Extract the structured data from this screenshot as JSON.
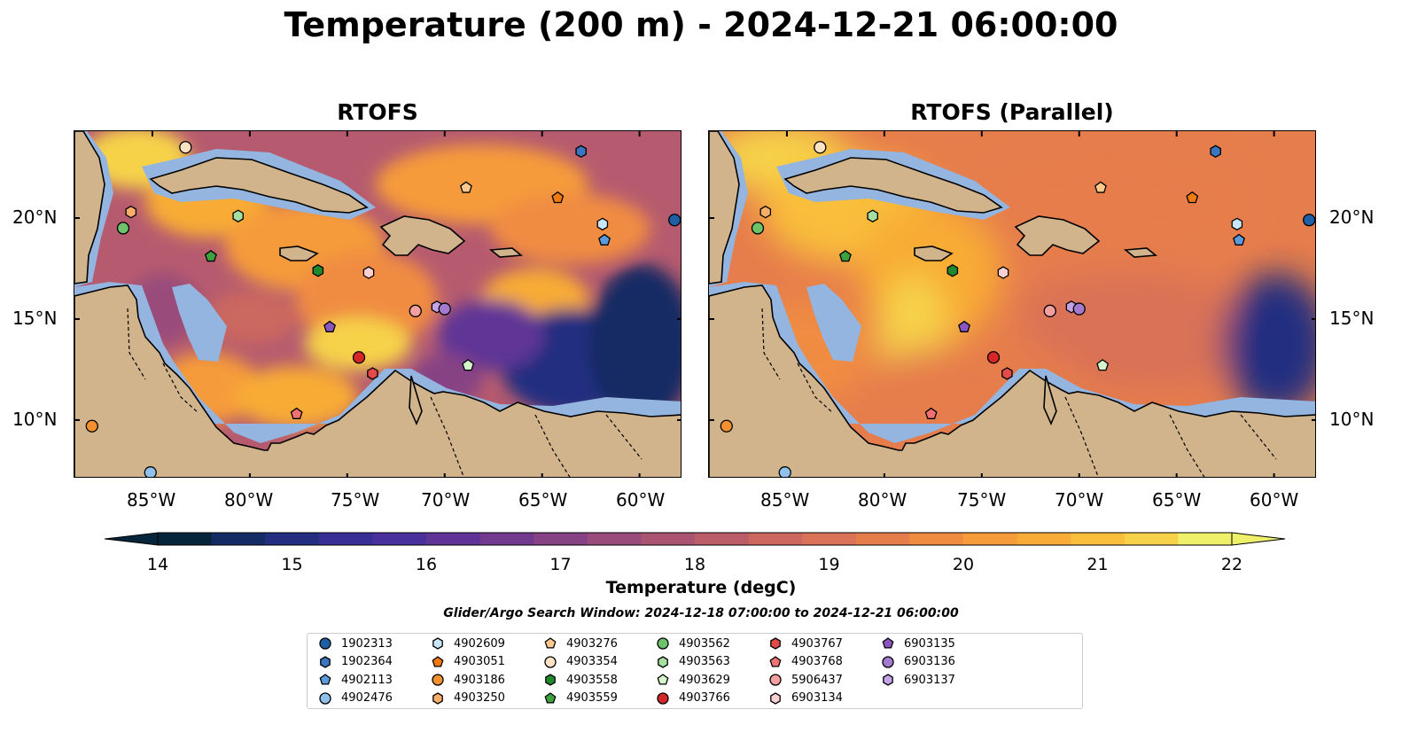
{
  "title": "Temperature (200 m) - 2024-12-21 06:00:00",
  "panels": [
    {
      "title": "RTOFS"
    },
    {
      "title": "RTOFS (Parallel)"
    }
  ],
  "axes": {
    "lat_labels": [
      "20°N",
      "15°N",
      "10°N"
    ],
    "lon_labels": [
      "85°W",
      "80°W",
      "75°W",
      "70°W",
      "65°W",
      "60°W"
    ]
  },
  "colorbar": {
    "label": "Temperature (degC)",
    "min": 14,
    "max": 22,
    "step": 0.5,
    "ticks": [
      "14",
      "15",
      "16",
      "17",
      "18",
      "19",
      "20",
      "21",
      "22"
    ],
    "colors": [
      "#07253a",
      "#142c63",
      "#232e80",
      "#372f95",
      "#4a309a",
      "#5e3496",
      "#723a8e",
      "#864284",
      "#994b7b",
      "#aa5472",
      "#bb5d69",
      "#cb675f",
      "#d97256",
      "#e67d4c",
      "#f08c42",
      "#f59b3a",
      "#f8ab36",
      "#f9be3a",
      "#f6d248",
      "#eff06a"
    ]
  },
  "subtitle": "Glider/Argo Search Window: 2024-12-18 07:00:00 to 2024-12-21 06:00:00",
  "legend": [
    {
      "id": "1902313",
      "shape": "circle",
      "color": "#1f5fa6"
    },
    {
      "id": "1902364",
      "shape": "hexagon",
      "color": "#3a75c0"
    },
    {
      "id": "4902113",
      "shape": "pentagon",
      "color": "#5b9bdc"
    },
    {
      "id": "4902476",
      "shape": "circle",
      "color": "#8fc1ea"
    },
    {
      "id": "4902609",
      "shape": "hexagon",
      "color": "#c8e6f8"
    },
    {
      "id": "4903051",
      "shape": "pentagon",
      "color": "#f07a10"
    },
    {
      "id": "4903186",
      "shape": "circle",
      "color": "#f5902e"
    },
    {
      "id": "4903250",
      "shape": "hexagon",
      "color": "#f9ae6a"
    },
    {
      "id": "4903276",
      "shape": "pentagon",
      "color": "#fbc98e"
    },
    {
      "id": "4903354",
      "shape": "circle",
      "color": "#fde2c4"
    },
    {
      "id": "4903558",
      "shape": "hexagon",
      "color": "#1f8a2c"
    },
    {
      "id": "4903559",
      "shape": "pentagon",
      "color": "#3ca23e"
    },
    {
      "id": "4903562",
      "shape": "circle",
      "color": "#6cc36a"
    },
    {
      "id": "4903563",
      "shape": "hexagon",
      "color": "#a5e0a0"
    },
    {
      "id": "4903629",
      "shape": "pentagon",
      "color": "#d4f4cc"
    },
    {
      "id": "4903766",
      "shape": "circle",
      "color": "#d62728"
    },
    {
      "id": "4903767",
      "shape": "hexagon",
      "color": "#e34a4a"
    },
    {
      "id": "4903768",
      "shape": "pentagon",
      "color": "#f07272"
    },
    {
      "id": "5906437",
      "shape": "circle",
      "color": "#f5a0a0"
    },
    {
      "id": "6903134",
      "shape": "hexagon",
      "color": "#fbd0d0"
    },
    {
      "id": "6903135",
      "shape": "pentagon",
      "color": "#8a55bf"
    },
    {
      "id": "6903136",
      "shape": "circle",
      "color": "#a47ad0"
    },
    {
      "id": "6903137",
      "shape": "hexagon",
      "color": "#c4a2e6"
    }
  ],
  "markers": [
    {
      "id": "4903354",
      "lon": -83.3,
      "lat": 23.5
    },
    {
      "id": "1902364",
      "lon": -63.0,
      "lat": 23.3
    },
    {
      "id": "4903276",
      "lon": -68.9,
      "lat": 21.5
    },
    {
      "id": "4903051",
      "lon": -64.2,
      "lat": 21.0
    },
    {
      "id": "4903250",
      "lon": -86.1,
      "lat": 20.3
    },
    {
      "id": "4903563",
      "lon": -80.6,
      "lat": 20.1
    },
    {
      "id": "4902609",
      "lon": -61.9,
      "lat": 19.7
    },
    {
      "id": "1902313",
      "lon": -58.2,
      "lat": 19.9
    },
    {
      "id": "4903562",
      "lon": -86.5,
      "lat": 19.5
    },
    {
      "id": "4902113",
      "lon": -61.8,
      "lat": 18.9
    },
    {
      "id": "4903559",
      "lon": -82.0,
      "lat": 18.1
    },
    {
      "id": "4903558",
      "lon": -76.5,
      "lat": 17.4
    },
    {
      "id": "6903134",
      "lon": -73.9,
      "lat": 17.3
    },
    {
      "id": "5906437",
      "lon": -71.5,
      "lat": 15.4
    },
    {
      "id": "6903137",
      "lon": -70.4,
      "lat": 15.6
    },
    {
      "id": "6903136",
      "lon": -70.0,
      "lat": 15.5
    },
    {
      "id": "6903135",
      "lon": -75.9,
      "lat": 14.6
    },
    {
      "id": "4903766",
      "lon": -74.4,
      "lat": 13.1
    },
    {
      "id": "4903629",
      "lon": -68.8,
      "lat": 12.7
    },
    {
      "id": "4903767",
      "lon": -73.7,
      "lat": 12.3
    },
    {
      "id": "4903768",
      "lon": -77.6,
      "lat": 10.3
    },
    {
      "id": "4903186",
      "lon": -88.1,
      "lat": 9.7
    },
    {
      "id": "4902476",
      "lon": -85.1,
      "lat": 7.4
    }
  ]
}
